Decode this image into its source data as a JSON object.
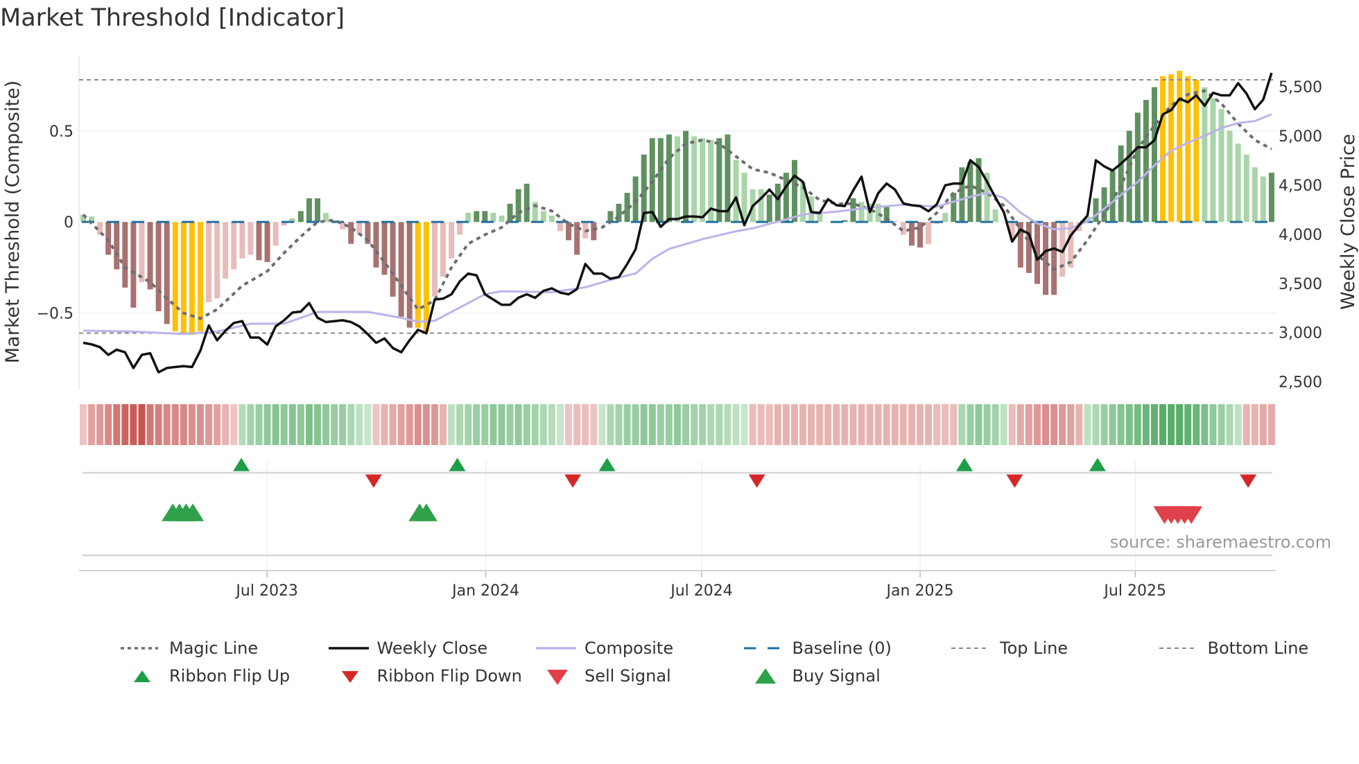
{
  "title": "Market Threshold [Indicator]",
  "source": "source: sharemaestro.com",
  "colors": {
    "dg": "#5f9160",
    "lg": "#a9d5a9",
    "dr": "#a87270",
    "lr": "#e8bcba",
    "y": "#ffc107",
    "magic": "#6e6e70",
    "close": "#111111",
    "composite": "#bcb3ea",
    "baseline": "#1f6f9f",
    "threshold": "#888888",
    "flip_up": "#1e9e47",
    "flip_down": "#d62728",
    "sell": "#e0404a",
    "buy": "#2ea14a",
    "ribbon_green": "#4fa85f",
    "ribbon_red": "#c6544f"
  },
  "chart_data": {
    "type": "bar+line",
    "title": "Market Threshold [Indicator]",
    "ylabel_left": "Market Threshold (Composite)",
    "ylabel_right": "Weekly Close Price",
    "ylim_left": [
      -0.92,
      0.91
    ],
    "ylim_right": [
      2420,
      5810
    ],
    "left_ticks": [
      {
        "v": 0.5,
        "label": "0.5"
      },
      {
        "v": 0,
        "label": "0"
      },
      {
        "v": -0.5,
        "label": "−0.5"
      }
    ],
    "right_ticks": [
      {
        "v": 5500,
        "label": "5,500"
      },
      {
        "v": 5000,
        "label": "5,000"
      },
      {
        "v": 4500,
        "label": "4,500"
      },
      {
        "v": 4000,
        "label": "4,000"
      },
      {
        "v": 3500,
        "label": "3,500"
      },
      {
        "v": 3000,
        "label": "3,000"
      },
      {
        "v": 2500,
        "label": "2,500"
      }
    ],
    "x_ticks": [
      {
        "week": 21.97,
        "label": "Jul 2023"
      },
      {
        "week": 48.1,
        "label": "Jan 2024"
      },
      {
        "week": 73.9,
        "label": "Jul 2024"
      },
      {
        "week": 100.0,
        "label": "Jan 2025"
      },
      {
        "week": 125.7,
        "label": "Jul 2025"
      }
    ],
    "top_line": 0.78,
    "bottom_line": -0.61,
    "baseline": 0,
    "composite_bars": {
      "values": [
        0.04,
        0.03,
        -0.07,
        -0.18,
        -0.26,
        -0.36,
        -0.47,
        -0.33,
        -0.37,
        -0.49,
        -0.56,
        -0.6,
        -0.61,
        -0.62,
        -0.6,
        -0.44,
        -0.42,
        -0.31,
        -0.26,
        -0.2,
        -0.18,
        -0.21,
        -0.22,
        -0.13,
        -0.02,
        0.02,
        0.06,
        0.13,
        0.13,
        0.05,
        0.01,
        -0.04,
        -0.12,
        -0.07,
        -0.12,
        -0.25,
        -0.29,
        -0.41,
        -0.52,
        -0.58,
        -0.58,
        -0.6,
        -0.41,
        -0.3,
        -0.2,
        -0.07,
        0.05,
        0.06,
        0.06,
        0.05,
        0.035,
        0.1,
        0.18,
        0.21,
        0.11,
        0.06,
        0.035,
        -0.05,
        -0.1,
        -0.18,
        -0.09,
        -0.1,
        0,
        0.06,
        0.1,
        0.16,
        0.25,
        0.37,
        0.46,
        0.46,
        0.48,
        0.47,
        0.5,
        0.47,
        0.46,
        0.45,
        0.46,
        0.48,
        0.34,
        0.27,
        0.18,
        0.18,
        0.15,
        0.21,
        0.27,
        0.34,
        0.22,
        0.14,
        0.05,
        0,
        0,
        0.01,
        0.13,
        0.11,
        0.1,
        0.1,
        0.09,
        0.005,
        -0.07,
        -0.13,
        -0.14,
        -0.12,
        -0.01,
        0.05,
        0.16,
        0.3,
        0.33,
        0.35,
        0.27,
        0.07,
        0,
        -0.1,
        -0.25,
        -0.28,
        -0.34,
        -0.4,
        -0.4,
        -0.3,
        -0.25,
        -0.05,
        0.03,
        0.13,
        0.19,
        0.28,
        0.42,
        0.5,
        0.6,
        0.67,
        0.74,
        0.8,
        0.81,
        0.83,
        0.8,
        0.78,
        0.74,
        0.68,
        0.62,
        0.5,
        0.43,
        0.37,
        0.3,
        0.25,
        0.27
      ],
      "state": [
        "lg",
        "lg",
        "lr",
        "dr",
        "dr",
        "dr",
        "dr",
        "lr",
        "dr",
        "dr",
        "dr",
        "y",
        "y",
        "y",
        "y",
        "lr",
        "lr",
        "lr",
        "lr",
        "lr",
        "lr",
        "dr",
        "dr",
        "lr",
        "lr",
        "lg",
        "dg",
        "dg",
        "dg",
        "lg",
        "lg",
        "lr",
        "dr",
        "lr",
        "dr",
        "dr",
        "dr",
        "dr",
        "dr",
        "dr",
        "y",
        "y",
        "lr",
        "lr",
        "lr",
        "lr",
        "lg",
        "dg",
        "dg",
        "lg",
        "lg",
        "dg",
        "dg",
        "dg",
        "lg",
        "lg",
        "lg",
        "lr",
        "dr",
        "dr",
        "lr",
        "dr",
        "lg",
        "dg",
        "dg",
        "dg",
        "dg",
        "dg",
        "dg",
        "dg",
        "dg",
        "lg",
        "dg",
        "lg",
        "lg",
        "lg",
        "dg",
        "dg",
        "lg",
        "lg",
        "lg",
        "lg",
        "dg",
        "dg",
        "dg",
        "dg",
        "lg",
        "lg",
        "lg",
        "lg",
        "lg",
        "dg",
        "dg",
        "lg",
        "lg",
        "lg",
        "dg",
        "lg",
        "lr",
        "dr",
        "dr",
        "lr",
        "lr",
        "lg",
        "dg",
        "dg",
        "dg",
        "dg",
        "lg",
        "lg",
        "lg",
        "lr",
        "dr",
        "dr",
        "dr",
        "dr",
        "dr",
        "lr",
        "lr",
        "lr",
        "lg",
        "dg",
        "dg",
        "dg",
        "dg",
        "dg",
        "dg",
        "dg",
        "dg",
        "y",
        "y",
        "y",
        "y",
        "y",
        "lg",
        "lg",
        "lg",
        "lg",
        "lg",
        "lg",
        "lg",
        "lg",
        "dg"
      ]
    },
    "weekly_close": [
      2896,
      2880,
      2852,
      2773,
      2826,
      2800,
      2640,
      2773,
      2790,
      2597,
      2640,
      2650,
      2659,
      2650,
      2817,
      3072,
      2922,
      3019,
      3098,
      3116,
      2949,
      2949,
      2878,
      3063,
      3125,
      3204,
      3213,
      3300,
      3151,
      3107,
      3116,
      3125,
      3107,
      3063,
      2984,
      2896,
      2940,
      2843,
      2800,
      2922,
      3028,
      2993,
      3336,
      3345,
      3389,
      3520,
      3600,
      3582,
      3389,
      3336,
      3283,
      3283,
      3354,
      3389,
      3354,
      3424,
      3450,
      3406,
      3389,
      3441,
      3697,
      3600,
      3600,
      3547,
      3565,
      3697,
      3846,
      4216,
      4225,
      4075,
      4154,
      4154,
      4180,
      4180,
      4172,
      4260,
      4234,
      4234,
      4374,
      4092,
      4286,
      4365,
      4453,
      4356,
      4488,
      4594,
      4532,
      4225,
      4216,
      4356,
      4295,
      4286,
      4444,
      4585,
      4225,
      4418,
      4515,
      4453,
      4312,
      4295,
      4286,
      4234,
      4304,
      4497,
      4515,
      4515,
      4752,
      4682,
      4532,
      4374,
      4225,
      3925,
      4048,
      4004,
      3740,
      3828,
      3855,
      3820,
      3987,
      4092,
      4190,
      4752,
      4690,
      4647,
      4717,
      4796,
      4884,
      4884,
      4955,
      5218,
      5262,
      5377,
      5342,
      5412,
      5306,
      5438,
      5412,
      5412,
      5535,
      5430,
      5271,
      5368,
      5640
    ],
    "composite_line": [
      [
        0,
        3020
      ],
      [
        6,
        3010
      ],
      [
        12,
        2985
      ],
      [
        16,
        3010
      ],
      [
        20,
        3090
      ],
      [
        24,
        3090
      ],
      [
        28,
        3210
      ],
      [
        34,
        3210
      ],
      [
        38,
        3150
      ],
      [
        40,
        3110
      ],
      [
        42,
        3120
      ],
      [
        48,
        3390
      ],
      [
        50,
        3420
      ],
      [
        56,
        3410
      ],
      [
        60,
        3460
      ],
      [
        64,
        3560
      ],
      [
        66,
        3600
      ],
      [
        68,
        3750
      ],
      [
        70,
        3850
      ],
      [
        74,
        3950
      ],
      [
        78,
        4030
      ],
      [
        80,
        4060
      ],
      [
        84,
        4150
      ],
      [
        86,
        4200
      ],
      [
        90,
        4230
      ],
      [
        94,
        4270
      ],
      [
        98,
        4300
      ],
      [
        102,
        4280
      ],
      [
        106,
        4380
      ],
      [
        108,
        4420
      ],
      [
        110,
        4370
      ],
      [
        112,
        4220
      ],
      [
        114,
        4110
      ],
      [
        116,
        4050
      ],
      [
        118,
        4060
      ],
      [
        120,
        4130
      ],
      [
        122,
        4260
      ],
      [
        124,
        4400
      ],
      [
        126,
        4530
      ],
      [
        128,
        4700
      ],
      [
        130,
        4850
      ],
      [
        132,
        4930
      ],
      [
        134,
        5000
      ],
      [
        136,
        5080
      ],
      [
        138,
        5130
      ],
      [
        140,
        5150
      ],
      [
        142,
        5220
      ]
    ],
    "magic_line": [
      [
        0,
        0.04
      ],
      [
        3,
        -0.1
      ],
      [
        5,
        -0.25
      ],
      [
        8,
        -0.33
      ],
      [
        10,
        -0.42
      ],
      [
        12,
        -0.5
      ],
      [
        14,
        -0.53
      ],
      [
        16,
        -0.48
      ],
      [
        19,
        -0.35
      ],
      [
        22,
        -0.27
      ],
      [
        24,
        -0.17
      ],
      [
        26,
        -0.08
      ],
      [
        28,
        0
      ],
      [
        30,
        0.01
      ],
      [
        32,
        -0.03
      ],
      [
        34,
        -0.1
      ],
      [
        36,
        -0.22
      ],
      [
        38,
        -0.35
      ],
      [
        40,
        -0.48
      ],
      [
        42,
        -0.43
      ],
      [
        44,
        -0.25
      ],
      [
        46,
        -0.12
      ],
      [
        48,
        -0.07
      ],
      [
        50,
        -0.03
      ],
      [
        52,
        0.05
      ],
      [
        54,
        0.09
      ],
      [
        56,
        0.06
      ],
      [
        58,
        -0.01
      ],
      [
        60,
        -0.05
      ],
      [
        62,
        -0.03
      ],
      [
        64,
        0.03
      ],
      [
        66,
        0.11
      ],
      [
        68,
        0.22
      ],
      [
        70,
        0.35
      ],
      [
        72,
        0.43
      ],
      [
        74,
        0.45
      ],
      [
        76,
        0.43
      ],
      [
        78,
        0.36
      ],
      [
        80,
        0.29
      ],
      [
        82,
        0.27
      ],
      [
        84,
        0.23
      ],
      [
        86,
        0.19
      ],
      [
        88,
        0.12
      ],
      [
        90,
        0.1
      ],
      [
        92,
        0.1
      ],
      [
        94,
        0.07
      ],
      [
        96,
        0.02
      ],
      [
        98,
        -0.05
      ],
      [
        100,
        -0.03
      ],
      [
        102,
        0.05
      ],
      [
        104,
        0.16
      ],
      [
        106,
        0.2
      ],
      [
        108,
        0.16
      ],
      [
        110,
        0.09
      ],
      [
        112,
        -0.04
      ],
      [
        114,
        -0.18
      ],
      [
        116,
        -0.26
      ],
      [
        118,
        -0.22
      ],
      [
        120,
        -0.1
      ],
      [
        122,
        0.04
      ],
      [
        124,
        0.2
      ],
      [
        126,
        0.4
      ],
      [
        128,
        0.53
      ],
      [
        130,
        0.64
      ],
      [
        132,
        0.7
      ],
      [
        134,
        0.72
      ],
      [
        136,
        0.65
      ],
      [
        138,
        0.54
      ],
      [
        140,
        0.45
      ],
      [
        142,
        0.4
      ]
    ],
    "ribbon": [
      -0.15,
      -0.35,
      -0.4,
      -0.5,
      -0.6,
      -0.7,
      -0.75,
      -0.8,
      -0.6,
      -0.55,
      -0.5,
      -0.5,
      -0.5,
      -0.45,
      -0.45,
      -0.4,
      -0.35,
      -0.25,
      -0.15,
      0.25,
      0.35,
      0.4,
      0.45,
      0.5,
      0.45,
      0.5,
      0.45,
      0.55,
      0.5,
      0.45,
      0.4,
      0.4,
      0.3,
      0.2,
      0.15,
      -0.15,
      -0.25,
      -0.3,
      -0.35,
      -0.4,
      -0.45,
      -0.45,
      -0.4,
      -0.25,
      0.2,
      0.3,
      0.35,
      0.4,
      0.4,
      0.45,
      0.45,
      0.4,
      0.45,
      0.4,
      0.35,
      0.3,
      0.25,
      0.15,
      -0.15,
      -0.2,
      -0.2,
      -0.15,
      0.15,
      0.3,
      0.35,
      0.4,
      0.4,
      0.45,
      0.45,
      0.4,
      0.4,
      0.45,
      0.4,
      0.35,
      0.35,
      0.3,
      0.3,
      0.25,
      0.2,
      0.15,
      -0.2,
      -0.2,
      -0.2,
      -0.25,
      -0.25,
      -0.25,
      -0.25,
      -0.25,
      -0.25,
      -0.25,
      -0.25,
      -0.25,
      -0.25,
      -0.25,
      -0.25,
      -0.25,
      -0.25,
      -0.25,
      -0.25,
      -0.25,
      -0.25,
      -0.25,
      -0.2,
      -0.2,
      -0.2,
      0.3,
      0.4,
      0.45,
      0.4,
      0.35,
      0.2,
      -0.2,
      -0.3,
      -0.35,
      -0.4,
      -0.45,
      -0.45,
      -0.4,
      -0.35,
      -0.25,
      0.2,
      0.3,
      0.4,
      0.45,
      0.5,
      0.55,
      0.6,
      0.65,
      0.7,
      0.75,
      0.75,
      0.75,
      0.7,
      0.65,
      0.55,
      0.45,
      0.4,
      0.3,
      0.2,
      -0.25,
      -0.25,
      -0.3,
      -0.3
    ],
    "ribbon_flip_up": [
      18.9,
      44.7,
      62.6,
      105.3,
      121.2
    ],
    "ribbon_flip_down": [
      34.7,
      58.5,
      80.5,
      111.3,
      139.2
    ],
    "buy_signals": [
      10.7,
      11.5,
      12.3,
      13.1,
      40.2,
      41.0
    ],
    "sell_signals": [
      129.2,
      130.0,
      130.8,
      131.6,
      132.4
    ],
    "legend": [
      {
        "key": "magic",
        "label": "Magic Line"
      },
      {
        "key": "close",
        "label": "Weekly Close"
      },
      {
        "key": "composite",
        "label": "Composite"
      },
      {
        "key": "baseline",
        "label": "Baseline (0)"
      },
      {
        "key": "top",
        "label": "Top Line"
      },
      {
        "key": "bottom",
        "label": "Bottom Line"
      },
      {
        "key": "flip_up",
        "label": "Ribbon Flip Up"
      },
      {
        "key": "flip_down",
        "label": "Ribbon Flip Down"
      },
      {
        "key": "sell",
        "label": "Sell Signal"
      },
      {
        "key": "buy",
        "label": "Buy Signal"
      }
    ],
    "legend_placement": "bottom"
  }
}
